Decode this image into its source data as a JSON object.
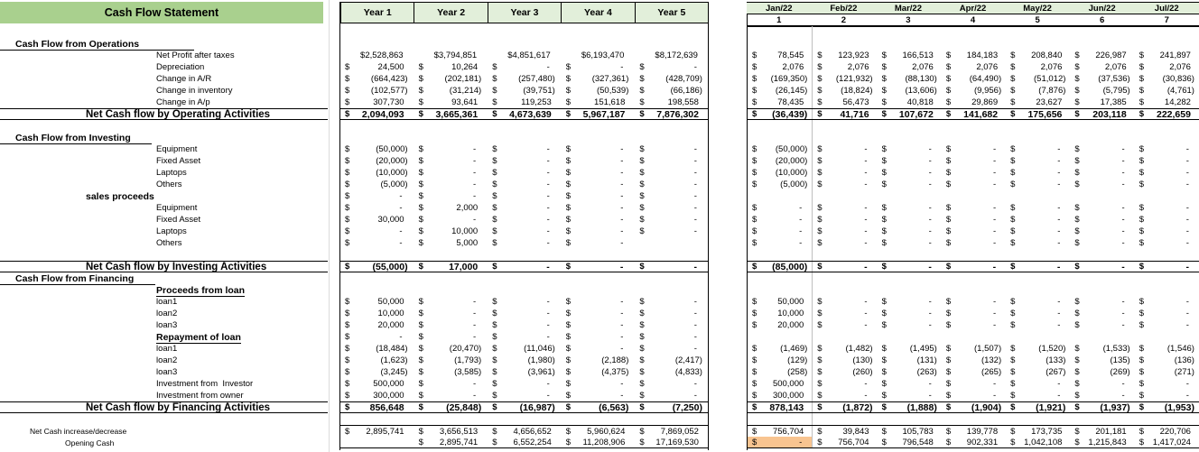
{
  "title": "Cash Flow Statement",
  "currency_symbol": "$",
  "colors": {
    "banner_green": "#A9D08E",
    "header_green": "#E2EFDA",
    "highlight_orange": "#F8C490"
  },
  "year_headers": [
    "Year 1",
    "Year 2",
    "Year 3",
    "Year 4",
    "Year 5"
  ],
  "month_headers": [
    "Jan/22",
    "Feb/22",
    "Mar/22",
    "Apr/22",
    "May/22",
    "Jun/22",
    "Jul/22"
  ],
  "month_numbers": [
    "1",
    "2",
    "3",
    "4",
    "5",
    "6",
    "7"
  ],
  "rows": [
    {
      "kind": "blank",
      "label": ""
    },
    {
      "kind": "heading",
      "label": "Cash Flow from Operations"
    },
    {
      "kind": "item",
      "label": "Net Profit after taxes",
      "year": [
        "$2,528,863",
        "$3,794,851",
        "$4,851,617",
        "$6,193,470",
        "$8,172,639"
      ],
      "month": [
        "78,545",
        "123,923",
        "166,513",
        "184,183",
        "208,840",
        "226,987",
        "241,897"
      ]
    },
    {
      "kind": "item",
      "label": "Depreciation",
      "year": [
        "24,500",
        "10,264",
        "-",
        "-",
        "-"
      ],
      "month": [
        "2,076",
        "2,076",
        "2,076",
        "2,076",
        "2,076",
        "2,076",
        "2,076"
      ]
    },
    {
      "kind": "item",
      "label": "Change in A/R",
      "year": [
        "(664,423)",
        "(202,181)",
        "(257,480)",
        "(327,361)",
        "(428,709)"
      ],
      "month": [
        "(169,350)",
        "(121,932)",
        "(88,130)",
        "(64,490)",
        "(51,012)",
        "(37,536)",
        "(30,836)"
      ]
    },
    {
      "kind": "item",
      "label": "Change in inventory",
      "year": [
        "(102,577)",
        "(31,214)",
        "(39,751)",
        "(50,539)",
        "(66,186)"
      ],
      "month": [
        "(26,145)",
        "(18,824)",
        "(13,606)",
        "(9,956)",
        "(7,876)",
        "(5,795)",
        "(4,761)"
      ]
    },
    {
      "kind": "item",
      "label": "Change in A/p",
      "year": [
        "307,730",
        "93,641",
        "119,253",
        "151,618",
        "198,558"
      ],
      "month": [
        "78,435",
        "56,473",
        "40,818",
        "29,869",
        "23,627",
        "17,385",
        "14,282"
      ]
    },
    {
      "kind": "total",
      "label": "Net Cash flow by Operating Activities",
      "year": [
        "2,094,093",
        "3,665,361",
        "4,673,639",
        "5,967,187",
        "7,876,302"
      ],
      "month": [
        "(36,439)",
        "41,716",
        "107,672",
        "141,682",
        "175,656",
        "203,118",
        "222,659"
      ]
    },
    {
      "kind": "blank",
      "label": ""
    },
    {
      "kind": "heading",
      "label": "Cash Flow from Investing"
    },
    {
      "kind": "item",
      "label": "Equipment",
      "year": [
        "(50,000)",
        "-",
        "-",
        "-",
        "-"
      ],
      "month": [
        "(50,000)",
        "-",
        "-",
        "-",
        "-",
        "-",
        "-"
      ]
    },
    {
      "kind": "item",
      "label": "Fixed Asset",
      "year": [
        "(20,000)",
        "-",
        "-",
        "-",
        "-"
      ],
      "month": [
        "(20,000)",
        "-",
        "-",
        "-",
        "-",
        "-",
        "-"
      ]
    },
    {
      "kind": "item",
      "label": "Laptops",
      "year": [
        "(10,000)",
        "-",
        "-",
        "-",
        "-"
      ],
      "month": [
        "(10,000)",
        "-",
        "-",
        "-",
        "-",
        "-",
        "-"
      ]
    },
    {
      "kind": "item",
      "label": "Others",
      "year": [
        "(5,000)",
        "-",
        "-",
        "-",
        "-"
      ],
      "month": [
        "(5,000)",
        "-",
        "-",
        "-",
        "-",
        "-",
        "-"
      ]
    },
    {
      "kind": "bolditem",
      "label": "sales proceeds",
      "year": [
        "-",
        "-",
        "-",
        "-",
        "-"
      ],
      "month": [
        "",
        "",
        "",
        "",
        "",
        "",
        ""
      ]
    },
    {
      "kind": "item",
      "label": "Equipment",
      "year": [
        "-",
        "2,000",
        "-",
        "-",
        "-"
      ],
      "month": [
        "-",
        "-",
        "-",
        "-",
        "-",
        "-",
        "-"
      ]
    },
    {
      "kind": "item",
      "label": "Fixed Asset",
      "year": [
        "30,000",
        "-",
        "-",
        "-",
        "-"
      ],
      "month": [
        "-",
        "-",
        "-",
        "-",
        "-",
        "-",
        "-"
      ]
    },
    {
      "kind": "item",
      "label": "Laptops",
      "year": [
        "-",
        "10,000",
        "-",
        "-",
        "-"
      ],
      "month": [
        "-",
        "-",
        "-",
        "-",
        "-",
        "-",
        "-"
      ]
    },
    {
      "kind": "item",
      "label": "Others",
      "year": [
        "-",
        "5,000",
        "-",
        "-",
        ""
      ],
      "month": [
        "-",
        "-",
        "-",
        "-",
        "-",
        "-",
        "-"
      ]
    },
    {
      "kind": "blank",
      "label": ""
    },
    {
      "kind": "total",
      "label": "Net Cash flow by Investing Activities",
      "year": [
        "(55,000)",
        "17,000",
        "-",
        "-",
        "-"
      ],
      "month": [
        "(85,000)",
        "-",
        "-",
        "-",
        "-",
        "-",
        "-"
      ]
    },
    {
      "kind": "heading",
      "label": "Cash Flow from Financing"
    },
    {
      "kind": "subheading",
      "label": "Proceeds from loan",
      "year": [
        "",
        "",
        "",
        "",
        ""
      ],
      "month": [
        "",
        "",
        "",
        "",
        "",
        "",
        ""
      ]
    },
    {
      "kind": "item",
      "label": "loan1",
      "year": [
        "50,000",
        "-",
        "-",
        "-",
        "-"
      ],
      "month": [
        "50,000",
        "-",
        "-",
        "-",
        "-",
        "-",
        "-"
      ]
    },
    {
      "kind": "item",
      "label": "loan2",
      "year": [
        "10,000",
        "-",
        "-",
        "-",
        "-"
      ],
      "month": [
        "10,000",
        "-",
        "-",
        "-",
        "-",
        "-",
        "-"
      ]
    },
    {
      "kind": "item",
      "label": "loan3",
      "year": [
        "20,000",
        "-",
        "-",
        "-",
        "-"
      ],
      "month": [
        "20,000",
        "-",
        "-",
        "-",
        "-",
        "-",
        "-"
      ]
    },
    {
      "kind": "subheading",
      "label": "Repayment of loan",
      "year": [
        "-",
        "-",
        "-",
        "-",
        "-"
      ],
      "month": [
        "",
        "",
        "",
        "",
        "",
        "",
        ""
      ]
    },
    {
      "kind": "item",
      "label": "loan1",
      "year": [
        "(18,484)",
        "(20,470)",
        "(11,046)",
        "-",
        "-"
      ],
      "month": [
        "(1,469)",
        "(1,482)",
        "(1,495)",
        "(1,507)",
        "(1,520)",
        "(1,533)",
        "(1,546)"
      ]
    },
    {
      "kind": "item",
      "label": "loan2",
      "year": [
        "(1,623)",
        "(1,793)",
        "(1,980)",
        "(2,188)",
        "(2,417)"
      ],
      "month": [
        "(129)",
        "(130)",
        "(131)",
        "(132)",
        "(133)",
        "(135)",
        "(136)"
      ]
    },
    {
      "kind": "item",
      "label": "loan3",
      "year": [
        "(3,245)",
        "(3,585)",
        "(3,961)",
        "(4,375)",
        "(4,833)"
      ],
      "month": [
        "(258)",
        "(260)",
        "(263)",
        "(265)",
        "(267)",
        "(269)",
        "(271)"
      ]
    },
    {
      "kind": "item",
      "label": "Investment from  Investor",
      "year": [
        "500,000",
        "-",
        "-",
        "-",
        "-"
      ],
      "month": [
        "500,000",
        "-",
        "-",
        "-",
        "-",
        "-",
        "-"
      ]
    },
    {
      "kind": "item",
      "label": "Investment from owner",
      "year": [
        "300,000",
        "-",
        "-",
        "-",
        "-"
      ],
      "month": [
        "300,000",
        "-",
        "-",
        "-",
        "-",
        "-",
        "-"
      ]
    },
    {
      "kind": "total",
      "label": "Net Cash flow by Financing Activities",
      "year": [
        "856,648",
        "(25,848)",
        "(16,987)",
        "(6,563)",
        "(7,250)"
      ],
      "month": [
        "878,143",
        "(1,872)",
        "(1,888)",
        "(1,904)",
        "(1,921)",
        "(1,937)",
        "(1,953)"
      ]
    },
    {
      "kind": "blank",
      "label": ""
    },
    {
      "kind": "bottom-a",
      "label": "Net Cash increase/decrease",
      "year": [
        "2,895,741",
        "3,656,513",
        "4,656,652",
        "5,960,624",
        "7,869,052"
      ],
      "month": [
        "756,704",
        "39,843",
        "105,783",
        "139,778",
        "173,735",
        "201,181",
        "220,706"
      ]
    },
    {
      "kind": "bottom-b",
      "label": "Opening Cash",
      "year": [
        "",
        "2,895,741",
        "6,552,254",
        "11,208,906",
        "17,169,530"
      ],
      "month": [
        "-",
        "756,704",
        "796,548",
        "902,331",
        "1,042,108",
        "1,215,843",
        "1,417,024"
      ],
      "highlight_month": 0
    }
  ]
}
